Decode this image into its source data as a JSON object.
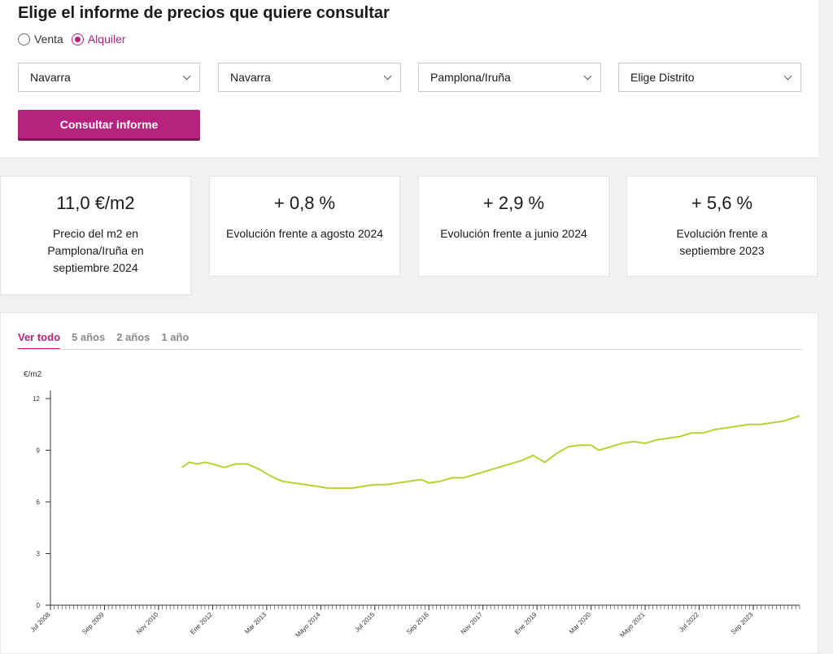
{
  "form": {
    "title": "Elige el informe de precios que quiere consultar",
    "radios": [
      {
        "label": "Venta",
        "checked": false
      },
      {
        "label": "Alquiler",
        "checked": true
      }
    ],
    "selects": [
      {
        "value": "Navarra"
      },
      {
        "value": "Navarra"
      },
      {
        "value": "Pamplona/Iruña"
      },
      {
        "value": "Elige Distrito"
      }
    ],
    "button_label": "Consultar informe"
  },
  "stats": [
    {
      "value": "11,0 €/m2",
      "label": "Precio del m2 en Pamplona/Iruña en septiembre 2024"
    },
    {
      "value": "+ 0,8 %",
      "label": "Evolución frente a agosto 2024"
    },
    {
      "value": "+ 2,9 %",
      "label": "Evolución frente a junio 2024"
    },
    {
      "value": "+ 5,6 %",
      "label": "Evolución frente a septiembre 2023"
    }
  ],
  "tabs": [
    {
      "label": "Ver todo",
      "active": true
    },
    {
      "label": "5 años",
      "active": false
    },
    {
      "label": "2 años",
      "active": false
    },
    {
      "label": "1 año",
      "active": false
    }
  ],
  "colors": {
    "accent": "#b5237e",
    "line": "#b5d334"
  },
  "chart_data": {
    "type": "line",
    "ylabel": "€/m2",
    "ylim": [
      0,
      12
    ],
    "yticks": [
      0,
      3,
      6,
      9,
      12
    ],
    "xlim": [
      "2008-07",
      "2024-09"
    ],
    "xtick_labels": [
      {
        "label": "Jul 2008",
        "date": "2008-07"
      },
      {
        "label": "Sep 2009",
        "date": "2009-09"
      },
      {
        "label": "Nov 2010",
        "date": "2010-11"
      },
      {
        "label": "Ene 2012",
        "date": "2012-01"
      },
      {
        "label": "Mar 2013",
        "date": "2013-03"
      },
      {
        "label": "Mayo 2014",
        "date": "2014-05"
      },
      {
        "label": "Jul 2015",
        "date": "2015-07"
      },
      {
        "label": "Sep 2016",
        "date": "2016-09"
      },
      {
        "label": "Nov 2017",
        "date": "2017-11"
      },
      {
        "label": "Ene 2019",
        "date": "2019-01"
      },
      {
        "label": "Mar 2020",
        "date": "2020-03"
      },
      {
        "label": "Mayo 2021",
        "date": "2021-05"
      },
      {
        "label": "Jul 2022",
        "date": "2022-07"
      },
      {
        "label": "Sep 2023",
        "date": "2023-09"
      }
    ],
    "series": [
      {
        "points": [
          [
            "2011-05",
            8.0
          ],
          [
            "2011-07",
            8.3
          ],
          [
            "2011-09",
            8.2
          ],
          [
            "2011-11",
            8.3
          ],
          [
            "2012-01",
            8.2
          ],
          [
            "2012-04",
            8.0
          ],
          [
            "2012-07",
            8.2
          ],
          [
            "2012-10",
            8.2
          ],
          [
            "2013-01",
            7.9
          ],
          [
            "2013-04",
            7.5
          ],
          [
            "2013-07",
            7.2
          ],
          [
            "2013-10",
            7.1
          ],
          [
            "2014-01",
            7.0
          ],
          [
            "2014-04",
            6.9
          ],
          [
            "2014-07",
            6.8
          ],
          [
            "2014-10",
            6.8
          ],
          [
            "2015-01",
            6.8
          ],
          [
            "2015-04",
            6.9
          ],
          [
            "2015-07",
            7.0
          ],
          [
            "2015-10",
            7.0
          ],
          [
            "2016-01",
            7.1
          ],
          [
            "2016-04",
            7.2
          ],
          [
            "2016-07",
            7.3
          ],
          [
            "2016-09",
            7.1
          ],
          [
            "2016-12",
            7.2
          ],
          [
            "2017-03",
            7.4
          ],
          [
            "2017-06",
            7.4
          ],
          [
            "2017-09",
            7.6
          ],
          [
            "2017-12",
            7.8
          ],
          [
            "2018-03",
            8.0
          ],
          [
            "2018-06",
            8.2
          ],
          [
            "2018-09",
            8.4
          ],
          [
            "2018-12",
            8.7
          ],
          [
            "2019-03",
            8.3
          ],
          [
            "2019-06",
            8.8
          ],
          [
            "2019-09",
            9.2
          ],
          [
            "2019-12",
            9.3
          ],
          [
            "2020-03",
            9.3
          ],
          [
            "2020-05",
            9.0
          ],
          [
            "2020-08",
            9.2
          ],
          [
            "2020-11",
            9.4
          ],
          [
            "2021-02",
            9.5
          ],
          [
            "2021-05",
            9.4
          ],
          [
            "2021-08",
            9.6
          ],
          [
            "2021-11",
            9.7
          ],
          [
            "2022-02",
            9.8
          ],
          [
            "2022-05",
            10.0
          ],
          [
            "2022-08",
            10.0
          ],
          [
            "2022-11",
            10.2
          ],
          [
            "2023-02",
            10.3
          ],
          [
            "2023-05",
            10.4
          ],
          [
            "2023-08",
            10.5
          ],
          [
            "2023-11",
            10.5
          ],
          [
            "2024-02",
            10.6
          ],
          [
            "2024-05",
            10.7
          ],
          [
            "2024-09",
            11.0
          ]
        ]
      }
    ],
    "grid": false
  }
}
